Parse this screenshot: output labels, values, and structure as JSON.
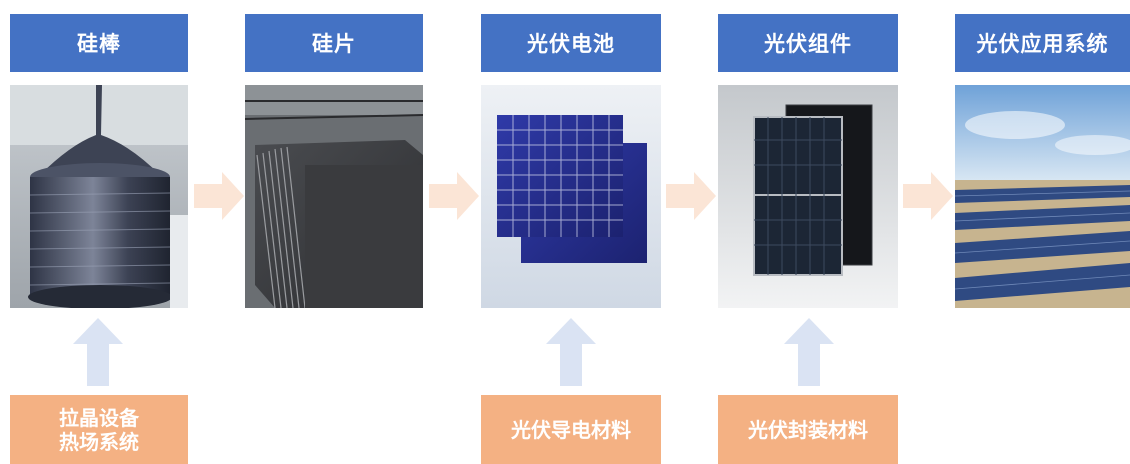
{
  "stages": [
    {
      "label": "硅棒"
    },
    {
      "label": "硅片"
    },
    {
      "label": "光伏电池"
    },
    {
      "label": "光伏组件"
    },
    {
      "label": "光伏应用系统"
    }
  ],
  "inputs": {
    "crystal_equipment": {
      "line1": "拉晶设备",
      "line2": "热场系统"
    },
    "conductive_material": {
      "label": "光伏导电材料"
    },
    "packaging_material": {
      "label": "光伏封装材料"
    }
  },
  "colors": {
    "stage_header": "#4472c4",
    "input_box": "#f4b183",
    "flow_arrow": "#fbe5d6",
    "up_arrow": "#dae3f3"
  }
}
